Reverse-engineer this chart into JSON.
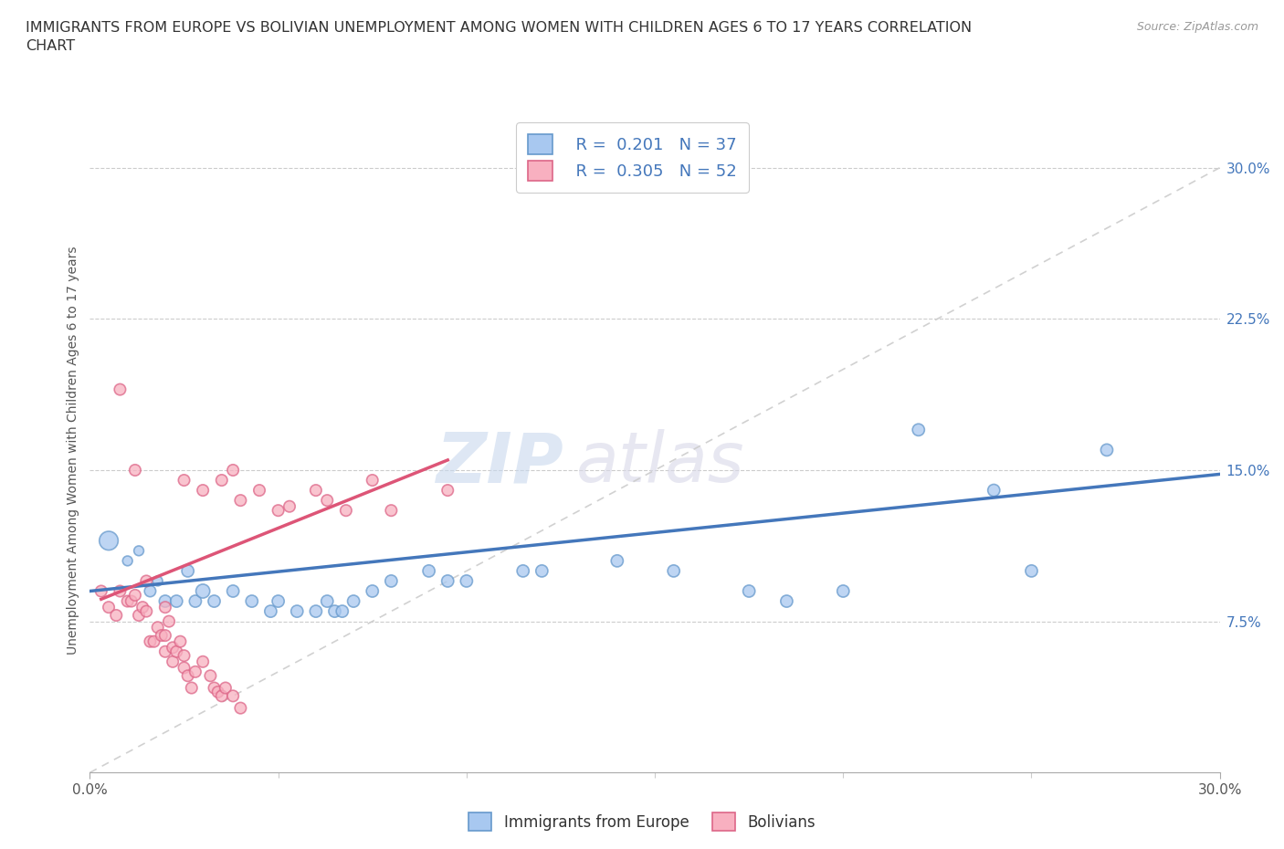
{
  "title": "IMMIGRANTS FROM EUROPE VS BOLIVIAN UNEMPLOYMENT AMONG WOMEN WITH CHILDREN AGES 6 TO 17 YEARS CORRELATION\nCHART",
  "source_text": "Source: ZipAtlas.com",
  "ylabel": "Unemployment Among Women with Children Ages 6 to 17 years",
  "xlim": [
    0.0,
    0.3
  ],
  "ylim": [
    0.0,
    0.32
  ],
  "ytick_labels": [
    "7.5%",
    "15.0%",
    "22.5%",
    "30.0%"
  ],
  "ytick_positions": [
    0.075,
    0.15,
    0.225,
    0.3
  ],
  "blue_color": "#a8c8f0",
  "pink_color": "#f8b0c0",
  "blue_edge_color": "#6699cc",
  "pink_edge_color": "#dd6688",
  "blue_line_color": "#4477bb",
  "pink_line_color": "#dd5577",
  "diagonal_line_color": "#cccccc",
  "watermark_zip": "ZIP",
  "watermark_atlas": "atlas",
  "legend_R1": "R =  0.201",
  "legend_N1": "N = 37",
  "legend_R2": "R =  0.305",
  "legend_N2": "N = 52",
  "blue_scatter": [
    [
      0.005,
      0.115
    ],
    [
      0.01,
      0.105
    ],
    [
      0.013,
      0.11
    ],
    [
      0.016,
      0.09
    ],
    [
      0.018,
      0.095
    ],
    [
      0.02,
      0.085
    ],
    [
      0.023,
      0.085
    ],
    [
      0.026,
      0.1
    ],
    [
      0.028,
      0.085
    ],
    [
      0.03,
      0.09
    ],
    [
      0.033,
      0.085
    ],
    [
      0.038,
      0.09
    ],
    [
      0.043,
      0.085
    ],
    [
      0.048,
      0.08
    ],
    [
      0.05,
      0.085
    ],
    [
      0.055,
      0.08
    ],
    [
      0.06,
      0.08
    ],
    [
      0.063,
      0.085
    ],
    [
      0.065,
      0.08
    ],
    [
      0.067,
      0.08
    ],
    [
      0.07,
      0.085
    ],
    [
      0.075,
      0.09
    ],
    [
      0.08,
      0.095
    ],
    [
      0.09,
      0.1
    ],
    [
      0.095,
      0.095
    ],
    [
      0.1,
      0.095
    ],
    [
      0.115,
      0.1
    ],
    [
      0.12,
      0.1
    ],
    [
      0.14,
      0.105
    ],
    [
      0.155,
      0.1
    ],
    [
      0.175,
      0.09
    ],
    [
      0.185,
      0.085
    ],
    [
      0.2,
      0.09
    ],
    [
      0.22,
      0.17
    ],
    [
      0.24,
      0.14
    ],
    [
      0.25,
      0.1
    ],
    [
      0.27,
      0.16
    ]
  ],
  "blue_scatter_sizes": [
    220,
    60,
    60,
    80,
    60,
    90,
    90,
    90,
    90,
    120,
    90,
    90,
    90,
    90,
    90,
    90,
    90,
    90,
    90,
    90,
    90,
    90,
    90,
    90,
    90,
    90,
    90,
    90,
    90,
    90,
    90,
    90,
    90,
    90,
    90,
    90,
    90
  ],
  "pink_scatter": [
    [
      0.003,
      0.09
    ],
    [
      0.005,
      0.082
    ],
    [
      0.007,
      0.078
    ],
    [
      0.008,
      0.09
    ],
    [
      0.01,
      0.085
    ],
    [
      0.011,
      0.085
    ],
    [
      0.012,
      0.088
    ],
    [
      0.013,
      0.078
    ],
    [
      0.014,
      0.082
    ],
    [
      0.015,
      0.08
    ],
    [
      0.015,
      0.095
    ],
    [
      0.016,
      0.065
    ],
    [
      0.017,
      0.065
    ],
    [
      0.018,
      0.072
    ],
    [
      0.019,
      0.068
    ],
    [
      0.02,
      0.082
    ],
    [
      0.02,
      0.068
    ],
    [
      0.02,
      0.06
    ],
    [
      0.021,
      0.075
    ],
    [
      0.022,
      0.062
    ],
    [
      0.022,
      0.055
    ],
    [
      0.023,
      0.06
    ],
    [
      0.024,
      0.065
    ],
    [
      0.025,
      0.058
    ],
    [
      0.025,
      0.052
    ],
    [
      0.026,
      0.048
    ],
    [
      0.027,
      0.042
    ],
    [
      0.028,
      0.05
    ],
    [
      0.03,
      0.055
    ],
    [
      0.032,
      0.048
    ],
    [
      0.033,
      0.042
    ],
    [
      0.034,
      0.04
    ],
    [
      0.035,
      0.038
    ],
    [
      0.036,
      0.042
    ],
    [
      0.038,
      0.038
    ],
    [
      0.04,
      0.032
    ],
    [
      0.008,
      0.19
    ],
    [
      0.012,
      0.15
    ],
    [
      0.025,
      0.145
    ],
    [
      0.03,
      0.14
    ],
    [
      0.035,
      0.145
    ],
    [
      0.038,
      0.15
    ],
    [
      0.04,
      0.135
    ],
    [
      0.045,
      0.14
    ],
    [
      0.05,
      0.13
    ],
    [
      0.053,
      0.132
    ],
    [
      0.06,
      0.14
    ],
    [
      0.063,
      0.135
    ],
    [
      0.068,
      0.13
    ],
    [
      0.075,
      0.145
    ],
    [
      0.08,
      0.13
    ],
    [
      0.095,
      0.14
    ]
  ],
  "pink_scatter_sizes": [
    80,
    80,
    80,
    80,
    80,
    80,
    80,
    80,
    80,
    80,
    80,
    80,
    80,
    80,
    80,
    80,
    80,
    80,
    80,
    80,
    80,
    80,
    80,
    80,
    80,
    80,
    80,
    80,
    80,
    80,
    80,
    80,
    80,
    80,
    80,
    80,
    80,
    80,
    80,
    80,
    80,
    80,
    80,
    80,
    80,
    80,
    80,
    80,
    80,
    80,
    80,
    80
  ],
  "blue_trend_x0": 0.0,
  "blue_trend_y0": 0.09,
  "blue_trend_x1": 0.3,
  "blue_trend_y1": 0.148,
  "pink_trend_x0": 0.003,
  "pink_trend_y0": 0.086,
  "pink_trend_x1": 0.095,
  "pink_trend_y1": 0.155
}
